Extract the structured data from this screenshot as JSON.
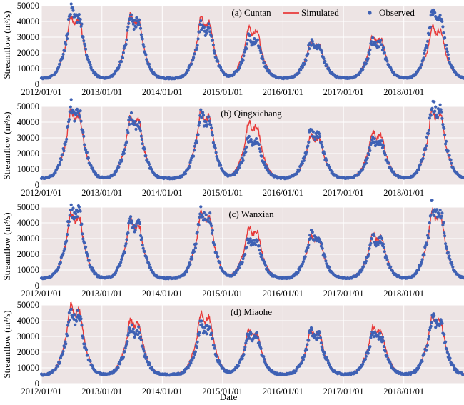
{
  "colors": {
    "simulated": "#e83a3a",
    "observed": "#3f61b4",
    "panel_bg": "#ede4e4",
    "grid": "#ffffff"
  },
  "legend": {
    "simulated": "Simulated",
    "observed": "Observed",
    "position": "top-right of panel (a)"
  },
  "xlabel": "Date",
  "chart_data": [
    {
      "type": "line",
      "title": "(a) Cuntan",
      "ylabel": "Streamflow (m³/s)",
      "ylim": [
        0,
        50000
      ],
      "yticks": [
        "0",
        "10000",
        "20000",
        "30000",
        "40000",
        "50000"
      ],
      "xticks": [
        "2012/01/01",
        "2013/01/01",
        "2014/01/01",
        "2015/01/01",
        "2016/01/01",
        "2017/01/01",
        "2018/01/01"
      ],
      "grid": true,
      "series": [
        {
          "name": "Simulated",
          "marker": "line",
          "annual_peaks": [
            [
              "2012-07-20",
              44000
            ],
            [
              "2013-07-15",
              44000
            ],
            [
              "2014-09-15",
              42000
            ],
            [
              "2015-07-01",
              36000
            ],
            [
              "2016-07-10",
              27000
            ],
            [
              "2017-07-20",
              31000
            ],
            [
              "2018-07-15",
              37000
            ]
          ]
        },
        {
          "name": "Observed",
          "marker": "dot",
          "annual_peaks": [
            [
              "2012-07-20",
              47000
            ],
            [
              "2013-07-15",
              43000
            ],
            [
              "2014-09-15",
              38000
            ],
            [
              "2015-07-01",
              30000
            ],
            [
              "2016-07-10",
              27000
            ],
            [
              "2017-07-20",
              28000
            ],
            [
              "2018-07-15",
              46000
            ]
          ]
        }
      ],
      "base_flow_approx": 4000
    },
    {
      "type": "line",
      "title": "(b) Qingxichang",
      "ylabel": "Streamflow (m³/s)",
      "ylim": [
        0,
        50000
      ],
      "yticks": [
        "0",
        "10000",
        "20000",
        "30000",
        "40000",
        "50000"
      ],
      "xticks": [
        "2012/01/01",
        "2013/01/01",
        "2014/01/01",
        "2015/01/01",
        "2016/01/01",
        "2017/01/01",
        "2018/01/01"
      ],
      "grid": true,
      "series": [
        {
          "name": "Simulated",
          "marker": "line",
          "annual_peaks": [
            [
              "2012-07-20",
              48000
            ],
            [
              "2013-07-15",
              44000
            ],
            [
              "2014-09-15",
              47000
            ],
            [
              "2015-07-01",
              40000
            ],
            [
              "2016-07-10",
              32000
            ],
            [
              "2017-07-20",
              34000
            ],
            [
              "2018-07-15",
              48000
            ]
          ]
        },
        {
          "name": "Observed",
          "marker": "dot",
          "annual_peaks": [
            [
              "2012-07-20",
              50000
            ],
            [
              "2013-07-15",
              43000
            ],
            [
              "2014-09-15",
              45000
            ],
            [
              "2015-07-01",
              30000
            ],
            [
              "2016-07-10",
              34000
            ],
            [
              "2017-07-20",
              30000
            ],
            [
              "2018-07-15",
              52000
            ]
          ]
        }
      ],
      "base_flow_approx": 4500
    },
    {
      "type": "line",
      "title": "(c) Wanxian",
      "ylabel": "Streamflow (m³/s)",
      "ylim": [
        0,
        50000
      ],
      "yticks": [
        "0",
        "10000",
        "20000",
        "30000",
        "40000",
        "50000"
      ],
      "xticks": [
        "2012/01/01",
        "2013/01/01",
        "2014/01/01",
        "2015/01/01",
        "2016/01/01",
        "2017/01/01",
        "2018/01/01"
      ],
      "grid": true,
      "series": [
        {
          "name": "Simulated",
          "marker": "line",
          "annual_peaks": [
            [
              "2012-07-20",
              47000
            ],
            [
              "2013-07-15",
              42000
            ],
            [
              "2014-09-15",
              47000
            ],
            [
              "2015-07-01",
              37000
            ],
            [
              "2016-07-10",
              32000
            ],
            [
              "2017-07-20",
              33000
            ],
            [
              "2018-07-15",
              48000
            ]
          ]
        },
        {
          "name": "Observed",
          "marker": "dot",
          "annual_peaks": [
            [
              "2012-07-20",
              50000
            ],
            [
              "2013-07-15",
              42000
            ],
            [
              "2014-09-15",
              48000
            ],
            [
              "2015-07-01",
              30000
            ],
            [
              "2016-07-10",
              33000
            ],
            [
              "2017-07-20",
              31000
            ],
            [
              "2018-07-15",
              51000
            ]
          ]
        }
      ],
      "base_flow_approx": 5000
    },
    {
      "type": "line",
      "title": "(d) Miaohe",
      "ylabel": "Streamflow (m³/s)",
      "ylim": [
        0,
        50000
      ],
      "yticks": [
        "0",
        "10000",
        "20000",
        "30000",
        "40000",
        "50000"
      ],
      "xticks": [
        "2012/01/01",
        "2013/01/01",
        "2014/01/01",
        "2015/01/01",
        "2016/01/01",
        "2017/01/01",
        "2018/01/01"
      ],
      "grid": true,
      "series": [
        {
          "name": "Simulated",
          "marker": "line",
          "annual_peaks": [
            [
              "2012-07-20",
              50000
            ],
            [
              "2013-07-15",
              41000
            ],
            [
              "2014-09-15",
              45000
            ],
            [
              "2015-07-01",
              34000
            ],
            [
              "2016-07-10",
              34000
            ],
            [
              "2017-07-20",
              36000
            ],
            [
              "2018-07-15",
              43000
            ]
          ]
        },
        {
          "name": "Observed",
          "marker": "dot",
          "annual_peaks": [
            [
              "2012-07-20",
              46000
            ],
            [
              "2013-07-15",
              36000
            ],
            [
              "2014-09-15",
              38000
            ],
            [
              "2015-07-01",
              32000
            ],
            [
              "2016-07-10",
              33000
            ],
            [
              "2017-07-20",
              32000
            ],
            [
              "2018-07-15",
              43000
            ]
          ]
        }
      ],
      "base_flow_approx": 6000
    }
  ]
}
